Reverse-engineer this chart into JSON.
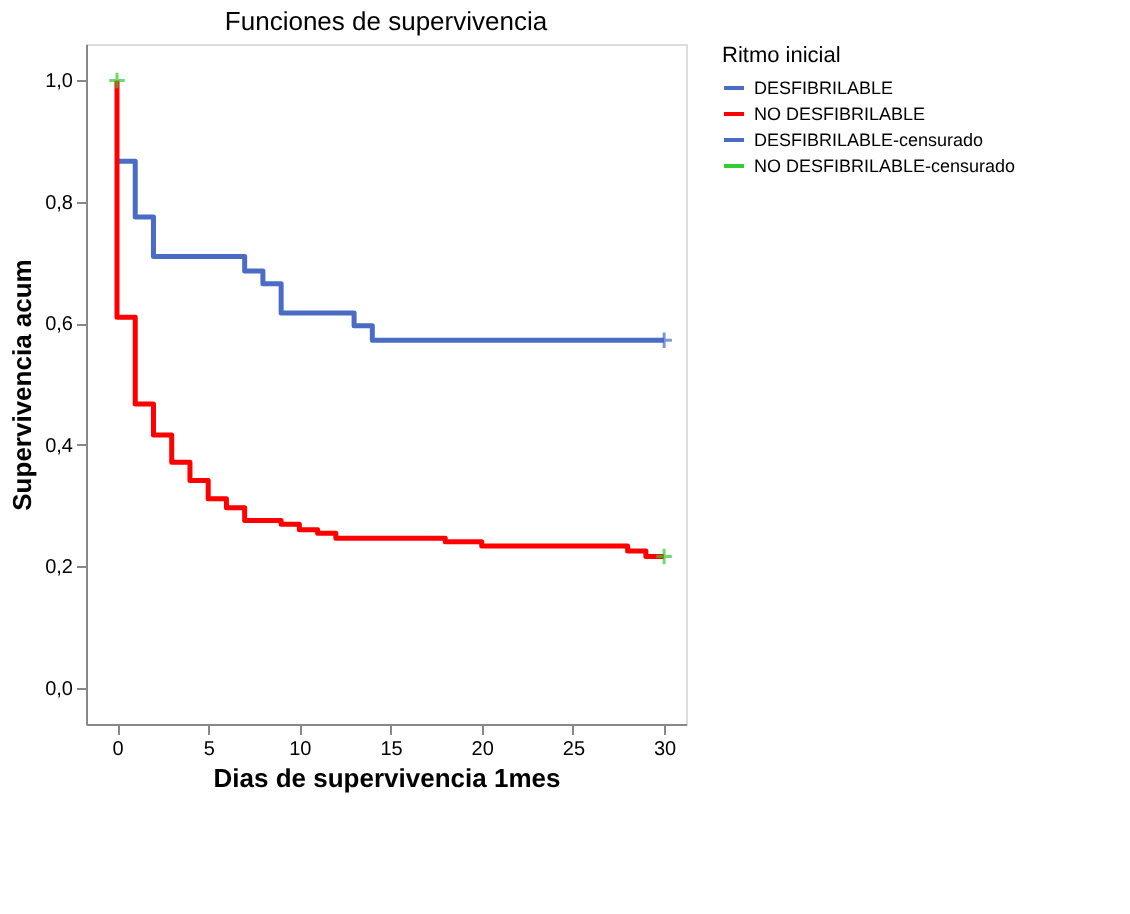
{
  "chart_data": {
    "type": "step",
    "title": "Funciones de supervivencia",
    "xlabel": "Dias de supervivencia 1mes",
    "ylabel": "Supervivencia acum",
    "legend_title": "Ritmo inicial",
    "legend": "right",
    "grid": false,
    "xlim": [
      -1.7,
      31.2
    ],
    "ylim": [
      -0.06,
      1.06
    ],
    "xticks": [
      0,
      5,
      10,
      15,
      20,
      25,
      30
    ],
    "yticks": [
      {
        "value": 0,
        "label": "0,0"
      },
      {
        "value": 0.2,
        "label": "0,2"
      },
      {
        "value": 0.4,
        "label": "0,4"
      },
      {
        "value": 0.6,
        "label": "0,6"
      },
      {
        "value": 0.8,
        "label": "0,8"
      },
      {
        "value": 1,
        "label": "1,0"
      }
    ],
    "series": [
      {
        "name": "DESFIBRILABLE",
        "color": "#4a6cc4",
        "marker": "none",
        "line_style": "solid",
        "x": [
          0,
          1,
          2,
          7,
          8,
          9,
          13,
          14,
          30
        ],
        "values": [
          0.867,
          0.775,
          0.71,
          0.686,
          0.665,
          0.617,
          0.596,
          0.572,
          0.572
        ]
      },
      {
        "name": "NO DESFIBRILABLE",
        "color": "#ff0000",
        "marker": "none",
        "line_style": "solid",
        "x": [
          0,
          0,
          1,
          2,
          3,
          4,
          5,
          6,
          7,
          9,
          10,
          11,
          12,
          18,
          20,
          28,
          29,
          30
        ],
        "values": [
          1.0,
          0.61,
          0.467,
          0.416,
          0.371,
          0.341,
          0.311,
          0.296,
          0.275,
          0.269,
          0.26,
          0.254,
          0.246,
          0.24,
          0.233,
          0.225,
          0.216,
          0.216
        ]
      },
      {
        "name": "DESFIBRILABLE-censurado",
        "type": "scatter",
        "color": "#4a6cc4",
        "marker": "cross",
        "x": [
          30
        ],
        "values": [
          0.572
        ]
      },
      {
        "name": "NO DESFIBRILABLE-censurado",
        "type": "scatter",
        "color": "#33cc33",
        "marker": "cross",
        "x": [
          0,
          30
        ],
        "values": [
          1.0,
          0.216
        ]
      }
    ]
  }
}
